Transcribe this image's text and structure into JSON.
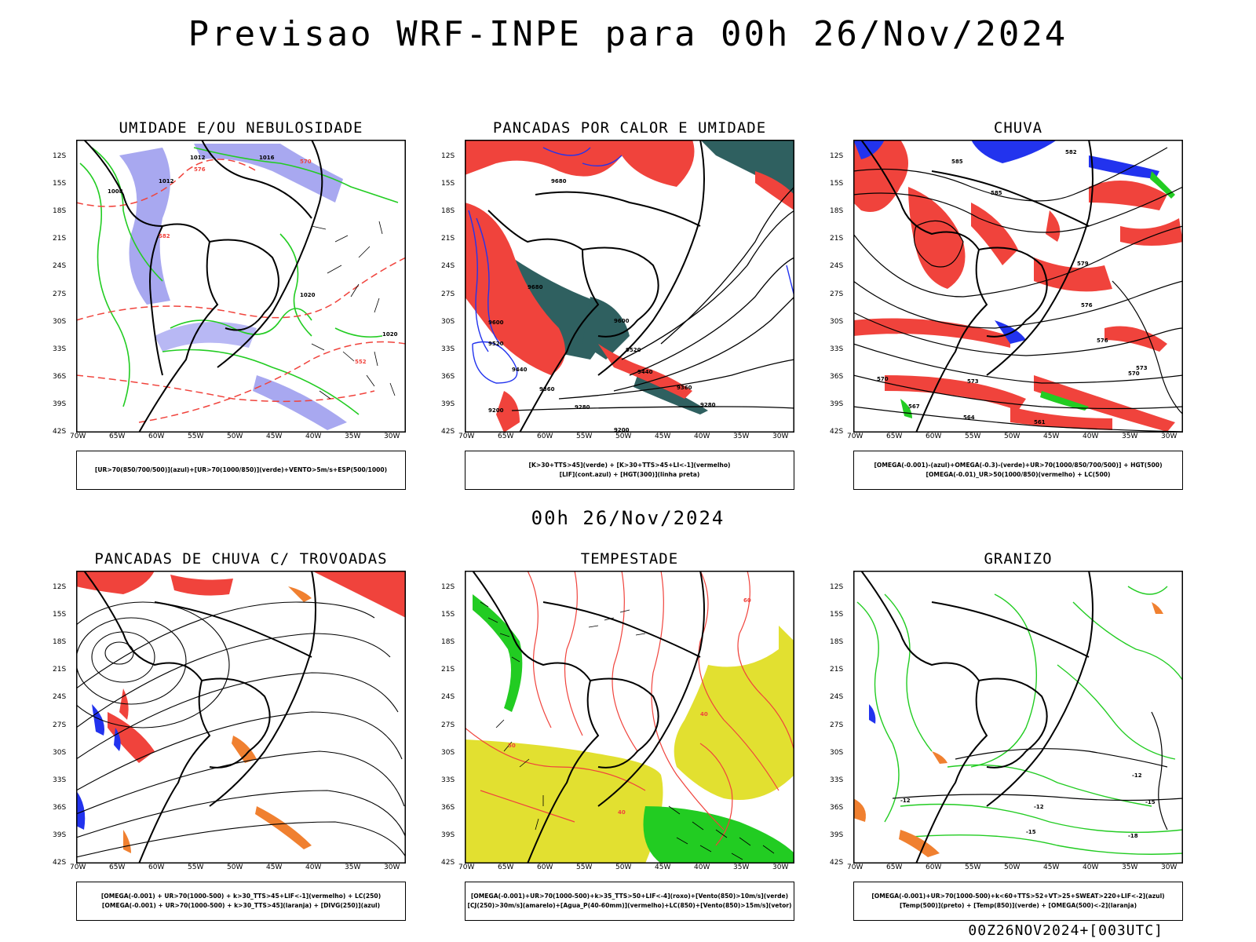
{
  "title": "Previsao WRF-INPE  para 00h 26/Nov/2024",
  "mid_title": "00h 26/Nov/2024",
  "footer": "00Z26NOV2024+[003UTC]",
  "axes": {
    "lat_labels": [
      "12S",
      "15S",
      "18S",
      "21S",
      "24S",
      "27S",
      "30S",
      "33S",
      "36S",
      "39S",
      "42S"
    ],
    "lon_labels": [
      "70W",
      "65W",
      "60W",
      "55W",
      "50W",
      "45W",
      "40W",
      "35W",
      "30W"
    ]
  },
  "colors": {
    "red": "#f0433c",
    "blue": "#2233ee",
    "green": "#22cc22",
    "lavender": "#9a9aee",
    "teal": "#2f6060",
    "yellow": "#e2e030",
    "orange": "#f08030",
    "black": "#000000"
  },
  "panels": [
    {
      "title": "UMIDADE E/OU NEBULOSIDADE",
      "legend": [
        "[UR>70(850/700/500)](azul)+[UR>70(1000/850)](verde)+VENTO>5m/s+ESP(500/1000)"
      ],
      "contour_labels": [
        "1012",
        "1016",
        "1008",
        "1020",
        "570",
        "576",
        "582",
        "552"
      ]
    },
    {
      "title": "PANCADAS POR CALOR E UMIDADE",
      "legend": [
        "[K>30+TTS>45](verde) + [K>30+TTS>45+LI<-1](vermelho)",
        "[LIF](cont.azul) + [HGT(300)](linha preta)"
      ],
      "contour_labels": [
        "9680",
        "9600",
        "9520",
        "9440",
        "9360",
        "9280",
        "9200"
      ]
    },
    {
      "title": "CHUVA",
      "legend": [
        "[OMEGA(-0.001)-(azul)+OMEGA(-0.3)-(verde)+UR>70(1000/850/700/500)] + HGT(500)",
        "[OMEGA(-0.01)_UR>50(1000/850)(vermelho) + LC(500)"
      ],
      "contour_labels": [
        "585",
        "582",
        "579",
        "576",
        "573",
        "570",
        "567",
        "564",
        "561"
      ]
    },
    {
      "title": "PANCADAS DE CHUVA C/ TROVOADAS",
      "legend": [
        "[OMEGA(-0.001) + UR>70(1000-500) + k>30_TTS>45+LIF<-1](vermelho) + LC(250)",
        "[OMEGA(-0.001) + UR>70(1000-500) + k>30_TTS>45](laranja) + [DIVG(250)](azul)"
      ],
      "contour_labels": []
    },
    {
      "title": "TEMPESTADE",
      "legend": [
        "[OMEGA(-0.001)+UR>70(1000-500)+k>35_TTS>50+LIF<-4](roxo)+[Vento(850)>10m/s](verde)",
        "[CJ(250)>30m/s](amarelo)+[Agua_P(40-60mm)](vermelho)+LC(850)+[Vento(850)>15m/s](vetor)"
      ],
      "contour_labels": [
        "40",
        "50",
        "60"
      ]
    },
    {
      "title": "GRANIZO",
      "legend": [
        "[OMEGA(-0.001)+UR>70(1000-500)+k<60+TTS>52+VT>25+SWEAT>220+LIF<-2](azul)",
        "[Temp(500)](preto) + [Temp(850)](verde) + [OMEGA(500)<-2](laranja)"
      ],
      "contour_labels": [
        "-12",
        "-15",
        "-18"
      ]
    }
  ]
}
